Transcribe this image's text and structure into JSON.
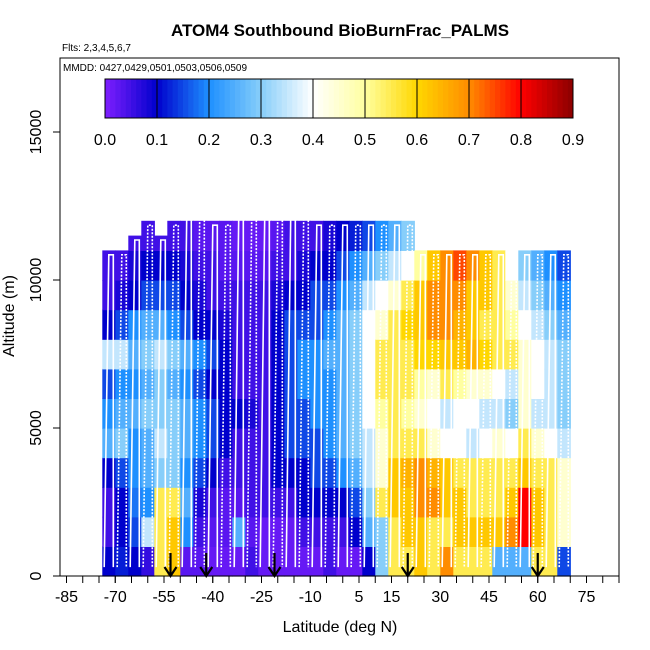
{
  "chart_data": {
    "type": "heatmap",
    "title": "ATOM4 Southbound BioBurnFrac_PALMS",
    "subtitle_flights": "Flts: 2,3,4,5,6,7",
    "subtitle_dates": "MMDD: 0427,0429,0501,0503,0506,0509",
    "xlabel": "Latitude (deg N)",
    "ylabel": "Altitude (m)",
    "xlim": [
      -87,
      85
    ],
    "ylim": [
      0,
      17500
    ],
    "x_ticks": [
      -85,
      -70,
      -55,
      -40,
      -25,
      -10,
      5,
      15,
      30,
      45,
      60,
      75
    ],
    "x_tick_labels": [
      "-85",
      "-70",
      "-55",
      "-40",
      "-25",
      "-10",
      "5",
      "15",
      "30",
      "45",
      "60",
      "75"
    ],
    "x_minor_tick_step": 5,
    "y_ticks": [
      0,
      5000,
      10000,
      15000
    ],
    "y_tick_labels": [
      "0",
      "5000",
      "10000",
      "15000"
    ],
    "colorbar": {
      "range": [
        0,
        0.9
      ],
      "tick_values": [
        0.0,
        0.1,
        0.2,
        0.3,
        0.4,
        0.5,
        0.6,
        0.7,
        0.8,
        0.9
      ],
      "tick_labels": [
        "0.0",
        "0.1",
        "0.2",
        "0.3",
        "0.4",
        "0.5",
        "0.6",
        "0.7",
        "0.8",
        "0.9"
      ],
      "colors": [
        "#7f1fff",
        "#0000cc",
        "#1e90ff",
        "#87cefa",
        "#ffffff",
        "#ffffa0",
        "#ffd700",
        "#ff8c00",
        "#ff0000",
        "#8b0000"
      ]
    },
    "arrows_latitude": [
      -53,
      -42,
      -21,
      20,
      60
    ],
    "grid": false,
    "legend": "colorbar at top inside plot",
    "latitude_bin_edges": [
      -74,
      -70,
      -66,
      -62,
      -58,
      -54,
      -50,
      -46,
      -42,
      -38,
      -34,
      -30,
      -26,
      -22,
      -18,
      -14,
      -10,
      -6,
      -2,
      2,
      6,
      10,
      14,
      18,
      22,
      26,
      30,
      34,
      38,
      42,
      46,
      50,
      54,
      58,
      62,
      66,
      70
    ],
    "altitude_bin_edges": [
      0,
      1000,
      2000,
      3000,
      4000,
      5000,
      6000,
      7000,
      8000,
      9000,
      10000,
      11000,
      12000
    ],
    "column_top_altitude": [
      11000,
      11000,
      11500,
      12000,
      11500,
      12000,
      12500,
      12500,
      12000,
      12000,
      12500,
      12500,
      12500,
      12500,
      12500,
      12500,
      12000,
      12000,
      12000,
      12000,
      12000,
      12000,
      12000,
      12000,
      11000,
      11000,
      11000,
      11000,
      11000,
      11000,
      11000,
      11000,
      11000,
      11000,
      11000,
      11000
    ],
    "bioburn_frac_grid": [
      [
        0.1,
        0.12,
        0.1,
        0.06,
        0.55,
        0.62,
        0.03,
        0.03,
        0.02,
        0.02,
        0.02,
        0.05,
        0.02,
        0.02,
        0.02,
        0.02,
        0.02,
        0.05,
        0.02,
        0.02,
        0.1,
        0.3,
        0.55,
        0.55,
        0.62,
        0.55,
        0.7,
        0.55,
        0.55,
        0.55,
        0.25,
        0.25,
        0.25,
        0.55,
        0.55,
        0.15
      ],
      [
        0.05,
        0.1,
        0.15,
        0.35,
        0.55,
        0.62,
        0.2,
        0.05,
        0.03,
        0.03,
        0.25,
        0.03,
        0.02,
        0.02,
        0.02,
        0.05,
        0.05,
        0.05,
        0.05,
        0.1,
        0.25,
        0.3,
        0.55,
        0.62,
        0.62,
        0.55,
        0.55,
        0.62,
        0.62,
        0.62,
        0.62,
        0.7,
        0.8,
        0.62,
        0.55,
        0.45
      ],
      [
        0.05,
        0.1,
        0.18,
        0.2,
        0.55,
        0.55,
        0.25,
        0.08,
        0.05,
        0.03,
        0.03,
        0.05,
        0.05,
        0.05,
        0.05,
        0.1,
        0.1,
        0.1,
        0.1,
        0.15,
        0.3,
        0.55,
        0.62,
        0.62,
        0.7,
        0.7,
        0.62,
        0.62,
        0.55,
        0.55,
        0.55,
        0.62,
        0.8,
        0.62,
        0.55,
        0.45
      ],
      [
        0.1,
        0.15,
        0.2,
        0.25,
        0.3,
        0.3,
        0.2,
        0.15,
        0.1,
        0.05,
        0.05,
        0.05,
        0.05,
        0.1,
        0.1,
        0.1,
        0.15,
        0.15,
        0.2,
        0.25,
        0.35,
        0.45,
        0.62,
        0.65,
        0.7,
        0.65,
        0.62,
        0.55,
        0.55,
        0.55,
        0.55,
        0.55,
        0.62,
        0.55,
        0.55,
        0.45
      ],
      [
        0.25,
        0.3,
        0.2,
        0.25,
        0.35,
        0.3,
        0.25,
        0.2,
        0.15,
        0.1,
        0.05,
        0.05,
        0.05,
        0.1,
        0.15,
        0.15,
        0.15,
        0.2,
        0.25,
        0.3,
        0.35,
        0.45,
        0.55,
        0.55,
        0.55,
        0.45,
        0.4,
        0.4,
        0.35,
        0.4,
        0.45,
        0.4,
        0.55,
        0.45,
        0.4,
        0.35
      ],
      [
        0.2,
        0.25,
        0.25,
        0.3,
        0.3,
        0.3,
        0.25,
        0.2,
        0.15,
        0.1,
        0.1,
        0.08,
        0.05,
        0.1,
        0.15,
        0.15,
        0.2,
        0.2,
        0.25,
        0.3,
        0.4,
        0.5,
        0.55,
        0.5,
        0.45,
        0.4,
        0.35,
        0.4,
        0.4,
        0.35,
        0.35,
        0.3,
        0.45,
        0.35,
        0.35,
        0.3
      ],
      [
        0.15,
        0.2,
        0.2,
        0.25,
        0.3,
        0.25,
        0.2,
        0.15,
        0.1,
        0.1,
        0.05,
        0.05,
        0.05,
        0.1,
        0.15,
        0.2,
        0.2,
        0.2,
        0.25,
        0.3,
        0.4,
        0.55,
        0.55,
        0.55,
        0.5,
        0.45,
        0.55,
        0.5,
        0.45,
        0.45,
        0.4,
        0.35,
        0.45,
        0.4,
        0.35,
        0.3
      ],
      [
        0.35,
        0.35,
        0.25,
        0.3,
        0.35,
        0.3,
        0.25,
        0.2,
        0.15,
        0.1,
        0.05,
        0.05,
        0.05,
        0.1,
        0.15,
        0.2,
        0.2,
        0.25,
        0.25,
        0.3,
        0.4,
        0.55,
        0.55,
        0.55,
        0.6,
        0.6,
        0.62,
        0.62,
        0.65,
        0.6,
        0.55,
        0.55,
        0.45,
        0.4,
        0.35,
        0.3
      ],
      [
        0.1,
        0.15,
        0.2,
        0.25,
        0.25,
        0.2,
        0.15,
        0.1,
        0.1,
        0.08,
        0.05,
        0.05,
        0.05,
        0.1,
        0.15,
        0.15,
        0.15,
        0.2,
        0.25,
        0.3,
        0.4,
        0.45,
        0.55,
        0.6,
        0.62,
        0.7,
        0.7,
        0.65,
        0.62,
        0.55,
        0.55,
        0.5,
        0.4,
        0.35,
        0.3,
        0.25
      ],
      [
        0.05,
        0.08,
        0.1,
        0.15,
        0.15,
        0.15,
        0.1,
        0.08,
        0.05,
        0.05,
        0.05,
        0.05,
        0.05,
        0.08,
        0.1,
        0.1,
        0.15,
        0.15,
        0.2,
        0.25,
        0.35,
        0.4,
        0.45,
        0.55,
        0.62,
        0.7,
        0.7,
        0.7,
        0.62,
        0.62,
        0.55,
        0.45,
        0.35,
        0.3,
        0.25,
        0.2
      ],
      [
        0.05,
        0.05,
        0.08,
        0.1,
        0.1,
        0.1,
        0.08,
        0.05,
        0.05,
        0.03,
        0.03,
        0.03,
        0.03,
        0.05,
        0.05,
        0.08,
        0.1,
        0.1,
        0.15,
        0.2,
        0.25,
        0.3,
        0.35,
        0.4,
        0.5,
        0.62,
        0.7,
        0.75,
        0.7,
        0.62,
        0.55,
        0.4,
        0.3,
        0.25,
        0.2,
        0.15
      ],
      [
        0.05,
        0.05,
        0.05,
        0.05,
        0.05,
        0.05,
        0.05,
        0.03,
        0.03,
        0.03,
        0.02,
        0.02,
        0.02,
        0.03,
        0.05,
        0.05,
        0.05,
        0.08,
        0.1,
        0.12,
        0.15,
        0.2,
        0.25,
        0.3,
        0.35,
        0.4,
        0.4,
        0.35,
        0.3,
        0.25,
        0.2,
        0.15,
        0.12,
        0.1,
        0.1,
        0.1
      ]
    ]
  }
}
